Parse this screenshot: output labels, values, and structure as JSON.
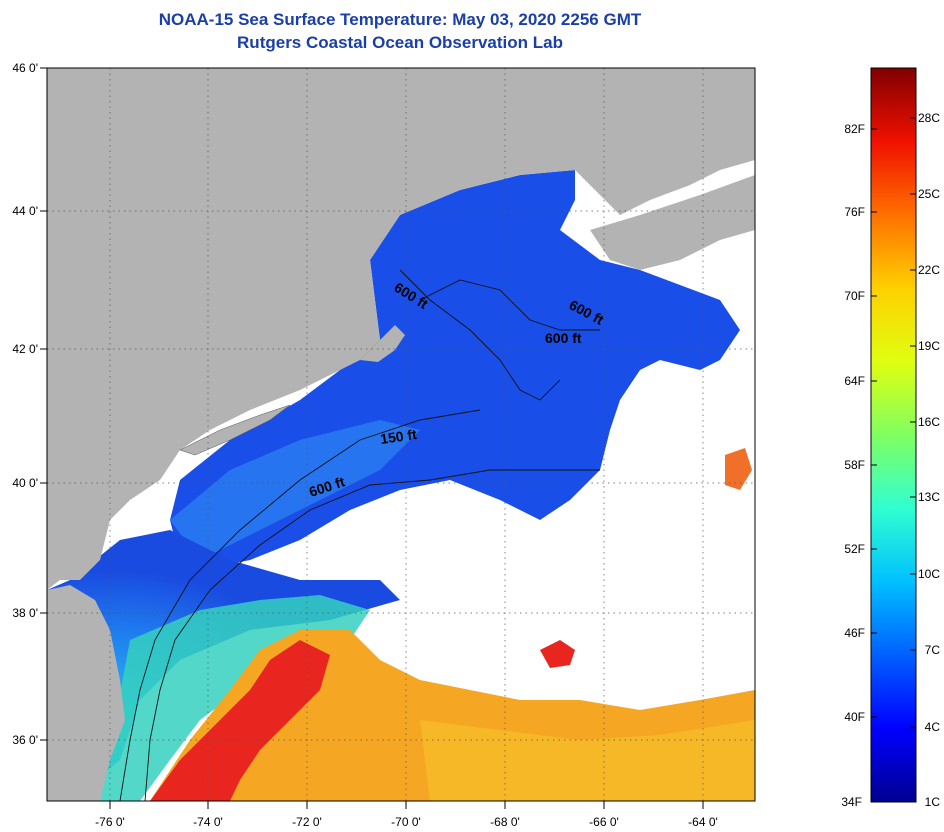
{
  "header": {
    "title": "NOAA-15 Sea Surface Temperature:  May 03, 2020 2256 GMT",
    "subtitle": "Rutgers Coastal Ocean Observation Lab"
  },
  "map": {
    "lat_labels": [
      "46 0'",
      "44 0'",
      "42 0'",
      "40 0'",
      "38 0'",
      "36 0'"
    ],
    "lon_labels": [
      "-76 0'",
      "-74 0'",
      "-72 0'",
      "-70 0'",
      "-68 0'",
      "-66 0'",
      "-64 0'"
    ],
    "contour_labels": [
      "600 ft",
      "600 ft",
      "600 ft",
      "150 ft",
      "600 ft"
    ],
    "colors": {
      "land": "#b3b3b3",
      "cloud": "#ffffff",
      "water_cold": "#1a4be0",
      "water_warm": "#f5a623",
      "gulf_stream": "#e8261f"
    }
  },
  "colorbar": {
    "fahrenheit": [
      "82F",
      "76F",
      "70F",
      "64F",
      "58F",
      "52F",
      "46F",
      "40F",
      "34F"
    ],
    "celsius": [
      "28C",
      "25C",
      "22C",
      "19C",
      "16C",
      "13C",
      "10C",
      "7C",
      "4C",
      "1C"
    ],
    "gradient_stops": [
      "#00008f",
      "#0000ff",
      "#0080ff",
      "#00e8ff",
      "#30ff90",
      "#a8ff30",
      "#ffff00",
      "#ffa000",
      "#ff3000",
      "#d00000",
      "#800000"
    ]
  }
}
